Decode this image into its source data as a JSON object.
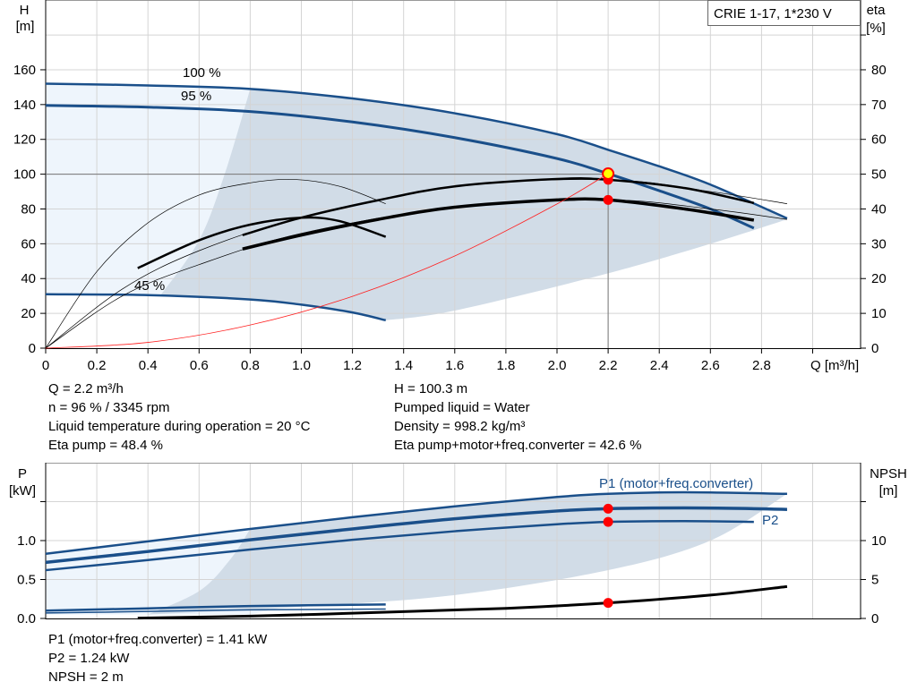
{
  "chart_data": [
    {
      "type": "line",
      "title": "CRIE 1-17, 1*230 V",
      "xlabel": "Q [m³/h]",
      "ylabel_left": [
        "H",
        "[m]"
      ],
      "ylabel_right": [
        "eta",
        "[%]"
      ],
      "xlim": [
        0,
        3.2
      ],
      "ylim_left": [
        0,
        180
      ],
      "ylim_right": [
        0,
        90
      ],
      "x_ticks": [
        "0",
        "0.2",
        "0.4",
        "0.6",
        "0.8",
        "1.0",
        "1.2",
        "1.4",
        "1.6",
        "1.8",
        "2.0",
        "2.2",
        "2.4",
        "2.6",
        "2.8"
      ],
      "y_ticks_left": [
        "0",
        "20",
        "40",
        "60",
        "80",
        "100",
        "120",
        "140",
        "160"
      ],
      "y_ticks_right": [
        "0",
        "10",
        "20",
        "30",
        "40",
        "50",
        "60",
        "70",
        "80"
      ],
      "grid": true,
      "curve_labels": {
        "c100": "100 %",
        "c95": "95 %",
        "c45": "45 %"
      },
      "series": [
        {
          "id": "h100",
          "axis": "H",
          "color": "#1a4f8a",
          "points": [
            [
              0,
              152
            ],
            [
              0.4,
              151
            ],
            [
              0.8,
              149
            ],
            [
              1.2,
              143.5
            ],
            [
              1.6,
              135
            ],
            [
              2.0,
              123
            ],
            [
              2.2,
              114
            ],
            [
              2.4,
              104.5
            ],
            [
              2.6,
              94
            ],
            [
              2.9,
              74.6
            ]
          ]
        },
        {
          "id": "h95",
          "axis": "H",
          "color": "#1a4f8a",
          "points": [
            [
              0,
              139.5
            ],
            [
              0.4,
              138.5
            ],
            [
              0.8,
              136
            ],
            [
              1.2,
              130
            ],
            [
              1.6,
              121
            ],
            [
              2.0,
              109
            ],
            [
              2.2,
              100.3
            ],
            [
              2.4,
              90.5
            ],
            [
              2.6,
              80
            ],
            [
              2.77,
              69
            ]
          ]
        },
        {
          "id": "h45",
          "axis": "H",
          "color": "#1a4f8a",
          "points": [
            [
              0,
              31
            ],
            [
              0.4,
              30.5
            ],
            [
              0.8,
              28
            ],
            [
              1.0,
              25
            ],
            [
              1.2,
              20.5
            ],
            [
              1.33,
              16
            ]
          ]
        },
        {
          "id": "eta_pump",
          "axis": "eta",
          "color": "#000",
          "points": [
            [
              0.77,
              32.5
            ],
            [
              1.0,
              37.5
            ],
            [
              1.3,
              42.5
            ],
            [
              1.6,
              46.5
            ],
            [
              2.0,
              48.6
            ],
            [
              2.2,
              48.4
            ],
            [
              2.5,
              46
            ],
            [
              2.77,
              41.7
            ]
          ]
        },
        {
          "id": "eta_total",
          "axis": "eta",
          "color": "#000",
          "points": [
            [
              0.77,
              28.5
            ],
            [
              1.0,
              32.5
            ],
            [
              1.3,
              37
            ],
            [
              1.6,
              40.5
            ],
            [
              2.0,
              42.6
            ],
            [
              2.2,
              42.6
            ],
            [
              2.5,
              40
            ],
            [
              2.77,
              36.8
            ]
          ]
        },
        {
          "id": "eta_low",
          "axis": "eta",
          "color": "#000",
          "points": [
            [
              0.36,
              23
            ],
            [
              0.6,
              31
            ],
            [
              0.8,
              35.5
            ],
            [
              1.0,
              37.5
            ],
            [
              1.15,
              36.5
            ],
            [
              1.33,
              32
            ]
          ]
        },
        {
          "id": "eta_thin_low",
          "axis": "eta",
          "color": "#000",
          "points": [
            [
              0,
              0
            ],
            [
              0.2,
              22
            ],
            [
              0.4,
              36
            ],
            [
              0.6,
              44
            ],
            [
              0.8,
              47.5
            ],
            [
              0.97,
              48.5
            ],
            [
              1.15,
              46.5
            ],
            [
              1.33,
              41.5
            ]
          ]
        },
        {
          "id": "eta_thin_high",
          "axis": "eta",
          "color": "#000",
          "points": [
            [
              0,
              0
            ],
            [
              0.3,
              17
            ],
            [
              0.6,
              28
            ],
            [
              1.0,
              37.5
            ],
            [
              1.6,
              46.5
            ],
            [
              2.2,
              48.4
            ],
            [
              2.6,
              45
            ],
            [
              2.9,
              41.5
            ]
          ]
        },
        {
          "id": "eta_thin_total",
          "axis": "eta",
          "color": "#000",
          "points": [
            [
              0,
              0
            ],
            [
              0.3,
              15
            ],
            [
              0.6,
              24
            ],
            [
              1.0,
              33
            ],
            [
              1.6,
              40.5
            ],
            [
              2.2,
              42.6
            ],
            [
              2.6,
              40
            ],
            [
              2.9,
              37
            ]
          ]
        },
        {
          "id": "system",
          "axis": "H",
          "color": "#ff2020",
          "points": [
            [
              0,
              0
            ],
            [
              0.4,
              3.3
            ],
            [
              0.8,
              13.3
            ],
            [
              1.2,
              29.8
            ],
            [
              1.6,
              53
            ],
            [
              2.0,
              82.9
            ],
            [
              2.2,
              100.3
            ]
          ]
        }
      ],
      "duty_point": {
        "Q": 2.2,
        "H": 100.3,
        "eta_pump": 48.4,
        "eta_total": 42.6
      }
    },
    {
      "type": "line",
      "ylabel_left": [
        "P",
        "[kW]"
      ],
      "ylabel_right": [
        "NPSH",
        "[m]"
      ],
      "ylim_left": [
        0,
        2.0
      ],
      "ylim_right": [
        0,
        20
      ],
      "y_ticks_left": [
        "0.0",
        "0.5",
        "1.0"
      ],
      "y_ticks_right": [
        "0",
        "5",
        "10"
      ],
      "series_labels": {
        "p1": "P1 (motor+freq.converter)",
        "p2": "P2"
      },
      "series": [
        {
          "id": "p1_100",
          "axis": "P",
          "color": "#1a4f8a",
          "points": [
            [
              0,
              0.83
            ],
            [
              0.4,
              0.99
            ],
            [
              0.8,
              1.15
            ],
            [
              1.2,
              1.3
            ],
            [
              1.6,
              1.44
            ],
            [
              2.0,
              1.56
            ],
            [
              2.2,
              1.6
            ],
            [
              2.5,
              1.62
            ],
            [
              2.9,
              1.6
            ]
          ]
        },
        {
          "id": "p1_95",
          "axis": "P",
          "color": "#1a4f8a",
          "points": [
            [
              0,
              0.72
            ],
            [
              0.4,
              0.86
            ],
            [
              0.8,
              1.01
            ],
            [
              1.2,
              1.15
            ],
            [
              1.6,
              1.28
            ],
            [
              2.0,
              1.38
            ],
            [
              2.2,
              1.41
            ],
            [
              2.5,
              1.42
            ],
            [
              2.77,
              1.41
            ],
            [
              2.9,
              1.4
            ]
          ]
        },
        {
          "id": "p2",
          "axis": "P",
          "color": "#1a4f8a",
          "points": [
            [
              0,
              0.62
            ],
            [
              0.4,
              0.75
            ],
            [
              0.8,
              0.885
            ],
            [
              1.2,
              1.01
            ],
            [
              1.6,
              1.12
            ],
            [
              2.0,
              1.21
            ],
            [
              2.2,
              1.24
            ],
            [
              2.5,
              1.25
            ],
            [
              2.77,
              1.24
            ]
          ]
        },
        {
          "id": "p1_45",
          "axis": "P",
          "color": "#1a4f8a",
          "points": [
            [
              0,
              0.1
            ],
            [
              0.4,
              0.13
            ],
            [
              0.8,
              0.16
            ],
            [
              1.33,
              0.18
            ]
          ]
        },
        {
          "id": "p2_45",
          "axis": "P",
          "color": "#1a4f8a",
          "points": [
            [
              0,
              0.07
            ],
            [
              0.4,
              0.09
            ],
            [
              0.8,
              0.11
            ],
            [
              1.33,
              0.12
            ]
          ]
        },
        {
          "id": "npsh",
          "axis": "NPSH",
          "color": "#000",
          "points": [
            [
              0.36,
              0.05
            ],
            [
              0.8,
              0.3
            ],
            [
              1.33,
              0.8
            ],
            [
              1.8,
              1.3
            ],
            [
              2.2,
              2.0
            ],
            [
              2.6,
              3.0
            ],
            [
              2.9,
              4.1
            ]
          ]
        }
      ],
      "duty_point": {
        "P1": 1.41,
        "P2": 1.24,
        "NPSH": 2
      }
    }
  ],
  "info_top": {
    "left": [
      "Q = 2.2 m³/h",
      "n = 96 % / 3345 rpm",
      "Liquid temperature during operation = 20 °C",
      "Eta pump = 48.4 %"
    ],
    "right": [
      "H = 100.3 m",
      "Pumped liquid = Water",
      "Density = 998.2 kg/m³",
      "Eta pump+motor+freq.converter = 42.6 %"
    ]
  },
  "info_bottom": [
    "P1 (motor+freq.converter) = 1.41 kW",
    "P2 = 1.24 kW",
    "NPSH = 2 m"
  ],
  "colors": {
    "curve": "#1a4f8a",
    "band_light": "#eef5fc",
    "band_dark": "#d1dce7",
    "system": "#ff2020",
    "duty": "#ff0000",
    "duty_fill": "#ffff00"
  }
}
